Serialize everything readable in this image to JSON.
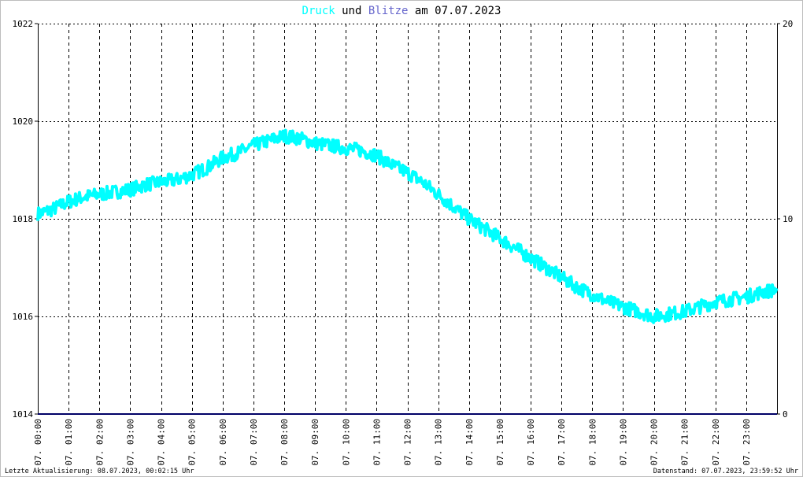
{
  "title": {
    "part1": "Druck",
    "part2": " und ",
    "part3": "Blitze",
    "part4": " am 07.07.2023"
  },
  "footer": {
    "left": "Letzte Aktualisierung: 08.07.2023, 00:02:15 Uhr",
    "right": "Datenstand: 07.07.2023, 23:59:52 Uhr"
  },
  "colors": {
    "druck": "#00ffff",
    "blitze": "#6666cc",
    "blitze_line": "#000066",
    "grid": "#000000"
  },
  "chart_data": {
    "type": "line",
    "title": "Druck und Blitze am 07.07.2023",
    "grid": true,
    "x_tick_labels": [
      "07. 00:00",
      "07. 01:00",
      "07. 02:00",
      "07. 03:00",
      "07. 04:00",
      "07. 05:00",
      "07. 06:00",
      "07. 07:00",
      "07. 08:00",
      "07. 09:00",
      "07. 10:00",
      "07. 11:00",
      "07. 12:00",
      "07. 13:00",
      "07. 14:00",
      "07. 15:00",
      "07. 16:00",
      "07. 17:00",
      "07. 18:00",
      "07. 19:00",
      "07. 20:00",
      "07. 21:00",
      "07. 22:00",
      "07. 23:00"
    ],
    "y_left": {
      "ylim": [
        1014,
        1022
      ],
      "ticks": [
        "1014",
        "1016",
        "1018",
        "1020",
        "1022"
      ]
    },
    "y_right": {
      "ylim": [
        0,
        20
      ],
      "ticks": [
        "0",
        "10",
        "20"
      ]
    },
    "series": [
      {
        "name": "Druck",
        "axis": "left",
        "color": "#00ffff",
        "x": [
          0,
          0.5,
          1,
          1.5,
          2,
          2.5,
          3,
          3.5,
          4,
          4.5,
          5,
          5.5,
          6,
          6.5,
          7,
          7.5,
          8,
          8.5,
          9,
          9.5,
          10,
          10.5,
          11,
          11.5,
          12,
          12.5,
          13,
          13.5,
          14,
          14.5,
          15,
          15.5,
          16,
          16.5,
          17,
          17.5,
          18,
          18.5,
          19,
          19.5,
          20,
          20.5,
          21,
          21.5,
          22,
          22.5,
          23,
          23.5,
          24
        ],
        "y": [
          1018.1,
          1018.2,
          1018.35,
          1018.45,
          1018.5,
          1018.55,
          1018.6,
          1018.7,
          1018.75,
          1018.8,
          1018.9,
          1019.05,
          1019.25,
          1019.35,
          1019.5,
          1019.6,
          1019.7,
          1019.65,
          1019.55,
          1019.5,
          1019.45,
          1019.4,
          1019.3,
          1019.1,
          1018.95,
          1018.75,
          1018.5,
          1018.25,
          1018.0,
          1017.8,
          1017.6,
          1017.4,
          1017.2,
          1017.0,
          1016.8,
          1016.6,
          1016.45,
          1016.3,
          1016.2,
          1016.1,
          1016.0,
          1016.05,
          1016.1,
          1016.2,
          1016.3,
          1016.35,
          1016.4,
          1016.5,
          1016.55
        ]
      },
      {
        "name": "Blitze",
        "axis": "right",
        "color": "#000066",
        "x": [
          0,
          24
        ],
        "y": [
          0,
          0
        ]
      }
    ]
  }
}
